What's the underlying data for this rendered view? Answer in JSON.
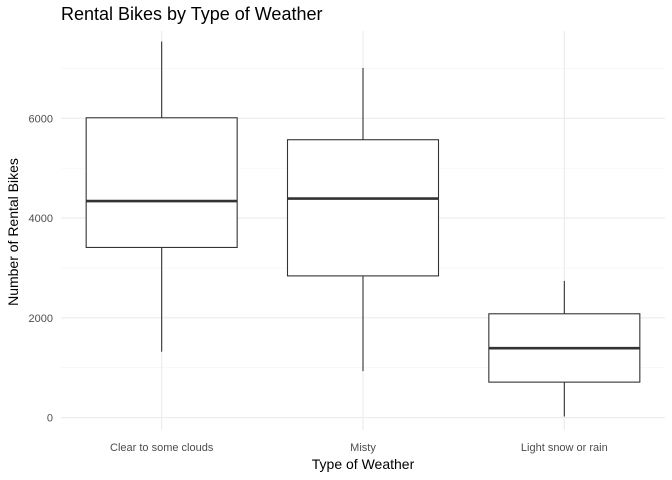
{
  "chart_data": {
    "type": "boxplot",
    "title": "Rental Bikes by Type of Weather",
    "xlabel": "Type of Weather",
    "ylabel": "Number of Rental Bikes",
    "ylim": [
      -250,
      7750
    ],
    "yticks": [
      0,
      2000,
      4000,
      6000
    ],
    "yticks_minor": [
      1000,
      3000,
      5000,
      7000
    ],
    "grid": true,
    "categories": [
      "Clear to some clouds",
      "Misty",
      "Light snow or rain"
    ],
    "boxes": [
      {
        "category": "Clear to some clouds",
        "min": 1320,
        "q1": 3410,
        "median": 4340,
        "q3": 6010,
        "max": 7540
      },
      {
        "category": "Misty",
        "min": 930,
        "q1": 2840,
        "median": 4390,
        "q3": 5570,
        "max": 7010
      },
      {
        "category": "Light snow or rain",
        "min": 20,
        "q1": 710,
        "median": 1390,
        "q3": 2080,
        "max": 2740
      }
    ]
  }
}
